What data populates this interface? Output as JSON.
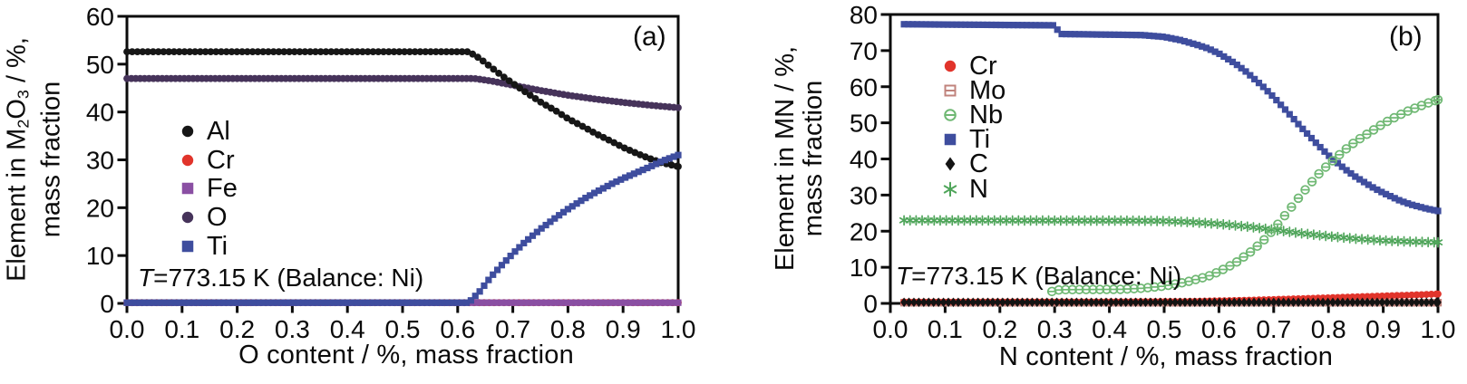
{
  "chart_data": [
    {
      "type": "scatter",
      "panel_label": "(a)",
      "xlabel": "O content / %, mass fraction",
      "ylabel": "Element in M2O3 / %, mass fraction",
      "ylabel_lines": [
        [
          {
            "t": "Element in M"
          },
          {
            "t": "2",
            "sub": true
          },
          {
            "t": "O"
          },
          {
            "t": "3",
            "sub": true
          },
          {
            "t": " / %,"
          }
        ],
        [
          {
            "t": "mass fraction"
          }
        ]
      ],
      "annotation": {
        "italic": "T",
        "rest": "=773.15 K (Balance: Ni)"
      },
      "xlim": [
        0,
        1
      ],
      "ylim": [
        0,
        60
      ],
      "x_ticks": [
        "0.0",
        "0.1",
        "0.2",
        "0.3",
        "0.4",
        "0.5",
        "0.6",
        "0.7",
        "0.8",
        "0.9",
        "1.0"
      ],
      "y_ticks": [
        "0",
        "10",
        "20",
        "30",
        "40",
        "50",
        "60"
      ],
      "grid": false,
      "legend_position": "upper-left-inside",
      "legend_order": [
        "Al",
        "Cr",
        "Fe",
        "O",
        "Ti"
      ],
      "draw_order": [
        "Cr",
        "Fe",
        "O",
        "Al",
        "Ti"
      ],
      "series": [
        {
          "name": "Al",
          "marker": "circle",
          "color": "#161616",
          "step": 0.0095,
          "points": [
            [
              0,
              52.6
            ],
            [
              0.62,
              52.6
            ],
            [
              0.64,
              51.2
            ],
            [
              0.66,
              49.4
            ],
            [
              0.68,
              47.6
            ],
            [
              0.7,
              46.0
            ],
            [
              0.72,
              44.4
            ],
            [
              0.75,
              42.1
            ],
            [
              0.78,
              40.1
            ],
            [
              0.8,
              38.6
            ],
            [
              0.83,
              36.8
            ],
            [
              0.85,
              35.5
            ],
            [
              0.88,
              33.8
            ],
            [
              0.9,
              32.6
            ],
            [
              0.93,
              31.1
            ],
            [
              0.95,
              30.2
            ],
            [
              0.97,
              29.4
            ],
            [
              1.0,
              28.6
            ]
          ]
        },
        {
          "name": "Cr",
          "marker": "circle",
          "color": "#e1342b",
          "step": 0.009,
          "points": [
            [
              0,
              0.15
            ],
            [
              1,
              0.15
            ]
          ]
        },
        {
          "name": "Fe",
          "marker": "square",
          "color": "#8a4fa3",
          "step": 0.008,
          "points": [
            [
              0,
              0.15
            ],
            [
              1,
              0.15
            ]
          ]
        },
        {
          "name": "O",
          "marker": "circle",
          "color": "#46335a",
          "step": 0.008,
          "points": [
            [
              0,
              47.0
            ],
            [
              0.63,
              47.0
            ],
            [
              0.66,
              46.5
            ],
            [
              0.7,
              45.6
            ],
            [
              0.75,
              44.5
            ],
            [
              0.8,
              43.5
            ],
            [
              0.85,
              42.7
            ],
            [
              0.9,
              42.0
            ],
            [
              0.95,
              41.4
            ],
            [
              1.0,
              40.9
            ]
          ]
        },
        {
          "name": "Ti",
          "marker": "square",
          "color": "#3e4d9e",
          "step": 0.008,
          "points": [
            [
              0,
              0.15
            ],
            [
              0.62,
              0.15
            ],
            [
              0.64,
              2.5
            ],
            [
              0.66,
              5.5
            ],
            [
              0.68,
              8.0
            ],
            [
              0.7,
              10.4
            ],
            [
              0.72,
              12.6
            ],
            [
              0.75,
              15.5
            ],
            [
              0.78,
              18.1
            ],
            [
              0.8,
              19.7
            ],
            [
              0.83,
              21.9
            ],
            [
              0.85,
              23.2
            ],
            [
              0.88,
              25.0
            ],
            [
              0.9,
              26.1
            ],
            [
              0.93,
              27.6
            ],
            [
              0.95,
              28.6
            ],
            [
              0.97,
              29.7
            ],
            [
              1.0,
              31.0
            ]
          ]
        }
      ]
    },
    {
      "type": "scatter",
      "panel_label": "(b)",
      "xlabel": "N content / %, mass fraction",
      "ylabel": "Element in MN / %, mass fraction",
      "ylabel_lines": [
        [
          {
            "t": "Element in MN / %,"
          }
        ],
        [
          {
            "t": "mass fraction"
          }
        ]
      ],
      "annotation": {
        "italic": "T",
        "rest": "=773.15 K (Balance: Ni)"
      },
      "xlim": [
        0,
        1
      ],
      "ylim": [
        0,
        80
      ],
      "x_ticks": [
        "0.0",
        "0.1",
        "0.2",
        "0.3",
        "0.4",
        "0.5",
        "0.6",
        "0.7",
        "0.8",
        "0.9",
        "1.0"
      ],
      "y_ticks": [
        "0",
        "10",
        "20",
        "30",
        "40",
        "50",
        "60",
        "70",
        "80"
      ],
      "grid": false,
      "legend_position": "upper-left-inside",
      "legend_order": [
        "Cr",
        "Mo",
        "Nb",
        "Ti",
        "C",
        "N"
      ],
      "draw_order": [
        "Mo",
        "Cr",
        "C",
        "N",
        "Ti",
        "Nb"
      ],
      "series": [
        {
          "name": "Cr",
          "marker": "circle",
          "color": "#e1342b",
          "step": 0.009,
          "points": [
            [
              0.025,
              0.4
            ],
            [
              0.4,
              0.45
            ],
            [
              0.55,
              0.55
            ],
            [
              0.65,
              0.85
            ],
            [
              0.75,
              1.3
            ],
            [
              0.85,
              1.8
            ],
            [
              0.95,
              2.3
            ],
            [
              1.0,
              2.6
            ]
          ]
        },
        {
          "name": "Mo",
          "marker": "open-square",
          "color": "#c0837c",
          "step": 0.009,
          "points": [
            [
              0.025,
              0.2
            ],
            [
              1.0,
              0.2
            ]
          ]
        },
        {
          "name": "Nb",
          "marker": "open-circle",
          "color": "#6fb873",
          "step": 0.0125,
          "points": [
            [
              0.295,
              3.3
            ],
            [
              0.31,
              3.8
            ],
            [
              0.42,
              3.9
            ],
            [
              0.46,
              4.2
            ],
            [
              0.5,
              4.8
            ],
            [
              0.54,
              5.9
            ],
            [
              0.58,
              7.5
            ],
            [
              0.6,
              8.8
            ],
            [
              0.63,
              11.2
            ],
            [
              0.66,
              14.5
            ],
            [
              0.68,
              17.2
            ],
            [
              0.7,
              20.5
            ],
            [
              0.73,
              26.2
            ],
            [
              0.75,
              30.1
            ],
            [
              0.78,
              35.5
            ],
            [
              0.8,
              38.5
            ],
            [
              0.83,
              42.5
            ],
            [
              0.85,
              44.9
            ],
            [
              0.88,
              47.8
            ],
            [
              0.9,
              49.8
            ],
            [
              0.93,
              52.2
            ],
            [
              0.95,
              53.6
            ],
            [
              0.98,
              55.4
            ],
            [
              1.0,
              56.4
            ]
          ]
        },
        {
          "name": "Ti",
          "marker": "square",
          "color": "#3e4d9e",
          "step": 0.008,
          "points": [
            [
              0.025,
              77.3
            ],
            [
              0.3,
              77.0
            ],
            [
              0.31,
              74.6
            ],
            [
              0.46,
              74.3
            ],
            [
              0.5,
              73.8
            ],
            [
              0.53,
              72.9
            ],
            [
              0.56,
              71.6
            ],
            [
              0.58,
              70.6
            ],
            [
              0.6,
              69.2
            ],
            [
              0.63,
              66.4
            ],
            [
              0.65,
              64.1
            ],
            [
              0.68,
              60.1
            ],
            [
              0.7,
              57.1
            ],
            [
              0.73,
              52.2
            ],
            [
              0.75,
              48.8
            ],
            [
              0.78,
              44.0
            ],
            [
              0.8,
              41.0
            ],
            [
              0.83,
              37.2
            ],
            [
              0.85,
              35.0
            ],
            [
              0.88,
              32.2
            ],
            [
              0.9,
              30.6
            ],
            [
              0.93,
              28.5
            ],
            [
              0.95,
              27.4
            ],
            [
              0.98,
              26.2
            ],
            [
              1.0,
              25.6
            ]
          ]
        },
        {
          "name": "C",
          "marker": "diamond",
          "color": "#141414",
          "step": 0.009,
          "points": [
            [
              0.025,
              0.3
            ],
            [
              1.0,
              0.3
            ]
          ]
        },
        {
          "name": "N",
          "marker": "asterisk",
          "color": "#4fa55a",
          "step": 0.011,
          "points": [
            [
              0.025,
              23.0
            ],
            [
              0.45,
              22.9
            ],
            [
              0.5,
              22.8
            ],
            [
              0.55,
              22.5
            ],
            [
              0.6,
              22.0
            ],
            [
              0.65,
              21.3
            ],
            [
              0.7,
              20.4
            ],
            [
              0.75,
              19.4
            ],
            [
              0.8,
              18.6
            ],
            [
              0.85,
              17.9
            ],
            [
              0.9,
              17.4
            ],
            [
              0.95,
              17.1
            ],
            [
              1.0,
              16.9
            ]
          ]
        }
      ]
    }
  ]
}
